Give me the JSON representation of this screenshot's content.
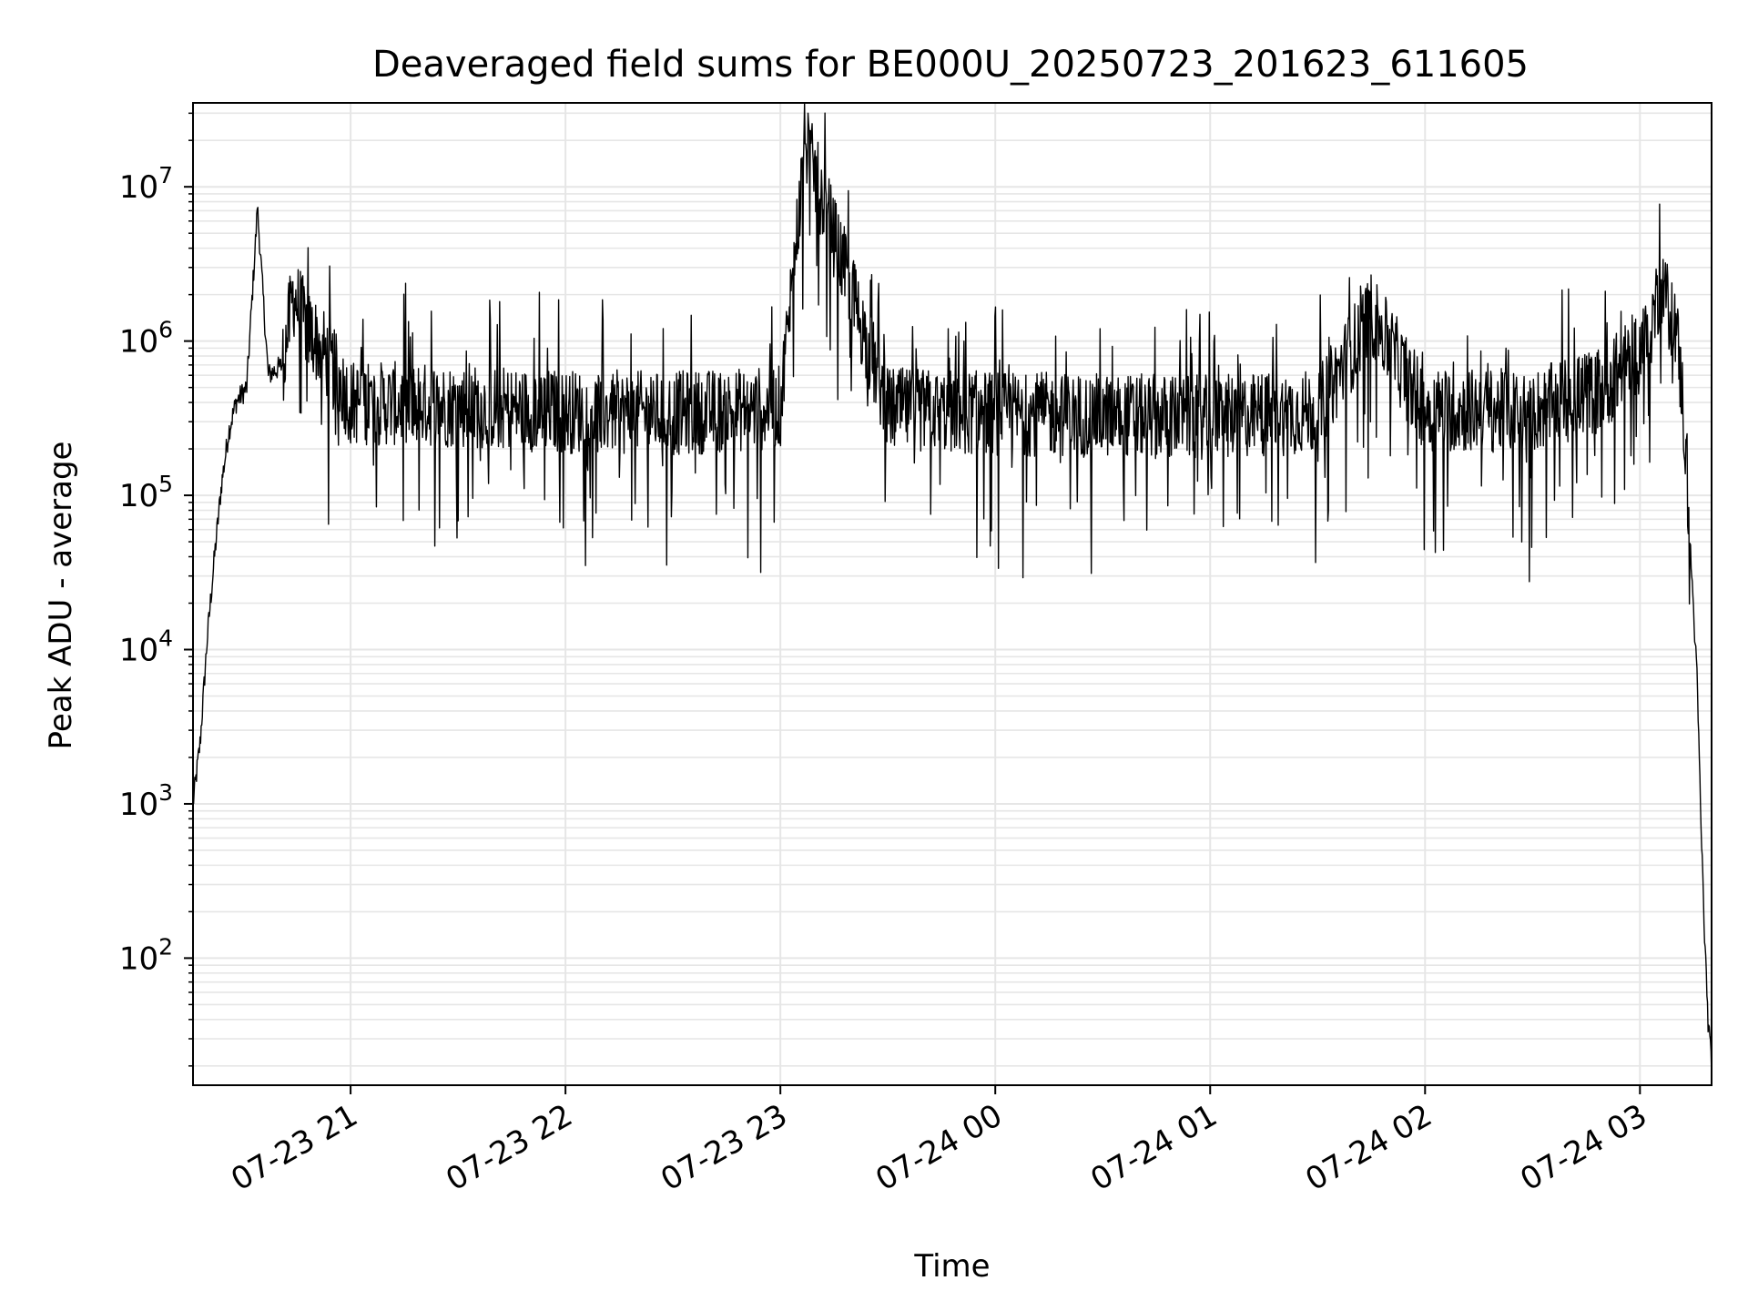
{
  "chart_data": {
    "type": "line",
    "title": "Deaveraged field sums for BE000U_20250723_201623_611605",
    "xlabel": "Time",
    "ylabel": "Peak ADU - average",
    "yscale": "log",
    "grid": true,
    "line_color": "#000000",
    "grid_color": "#e6e6e6",
    "xlim": [
      "2025-07-23 20:16",
      "2025-07-24 03:20"
    ],
    "ylim": [
      15,
      35000000
    ],
    "x_ticks": [
      {
        "value": "2025-07-23 21:00",
        "label": "07-23 21"
      },
      {
        "value": "2025-07-23 22:00",
        "label": "07-23 22"
      },
      {
        "value": "2025-07-23 23:00",
        "label": "07-23 23"
      },
      {
        "value": "2025-07-24 00:00",
        "label": "07-24 00"
      },
      {
        "value": "2025-07-24 01:00",
        "label": "07-24 01"
      },
      {
        "value": "2025-07-24 02:00",
        "label": "07-24 02"
      },
      {
        "value": "2025-07-24 03:00",
        "label": "07-24 03"
      }
    ],
    "y_ticks": [
      {
        "value": 100,
        "mantissa": "10",
        "exponent": "2"
      },
      {
        "value": 1000,
        "mantissa": "10",
        "exponent": "3"
      },
      {
        "value": 10000,
        "mantissa": "10",
        "exponent": "4"
      },
      {
        "value": 100000,
        "mantissa": "10",
        "exponent": "5"
      },
      {
        "value": 1000000,
        "mantissa": "10",
        "exponent": "6"
      },
      {
        "value": 10000000,
        "mantissa": "10",
        "exponent": "7"
      }
    ],
    "series": [
      {
        "x": [
          "2025-07-23 20:16",
          "2025-07-23 20:18",
          "2025-07-23 20:20",
          "2025-07-23 20:22",
          "2025-07-23 20:24",
          "2025-07-23 20:26",
          "2025-07-23 20:28",
          "2025-07-23 20:31",
          "2025-07-23 20:34",
          "2025-07-23 20:37",
          "2025-07-23 20:41",
          "2025-07-23 20:44",
          "2025-07-23 20:48",
          "2025-07-23 20:52",
          "2025-07-23 21:00",
          "2025-07-23 21:30",
          "2025-07-23 22:00",
          "2025-07-23 22:30",
          "2025-07-23 23:00",
          "2025-07-23 23:07",
          "2025-07-23 23:30",
          "2025-07-24 00:00",
          "2025-07-24 00:30",
          "2025-07-24 01:00",
          "2025-07-24 01:30",
          "2025-07-24 01:45",
          "2025-07-24 02:00",
          "2025-07-24 02:30",
          "2025-07-24 02:50",
          "2025-07-24 03:02",
          "2025-07-24 03:06",
          "2025-07-24 03:08",
          "2025-07-24 03:10",
          "2025-07-24 03:12",
          "2025-07-24 03:14",
          "2025-07-24 03:16",
          "2025-07-24 03:17",
          "2025-07-24 03:18",
          "2025-07-24 03:19",
          "2025-07-24 03:20"
        ],
        "y": [
          1000,
          2500,
          12000,
          40000,
          120000,
          260000,
          400000,
          500000,
          7200000,
          600000,
          700000,
          2000000,
          1200000,
          900000,
          400000,
          380000,
          350000,
          340000,
          370000,
          19000000,
          360000,
          340000,
          330000,
          320000,
          350000,
          1500000,
          360000,
          350000,
          500000,
          1000000,
          2500000,
          1600000,
          1300000,
          400000,
          50000,
          6000,
          800,
          150,
          40,
          20
        ]
      }
    ]
  }
}
